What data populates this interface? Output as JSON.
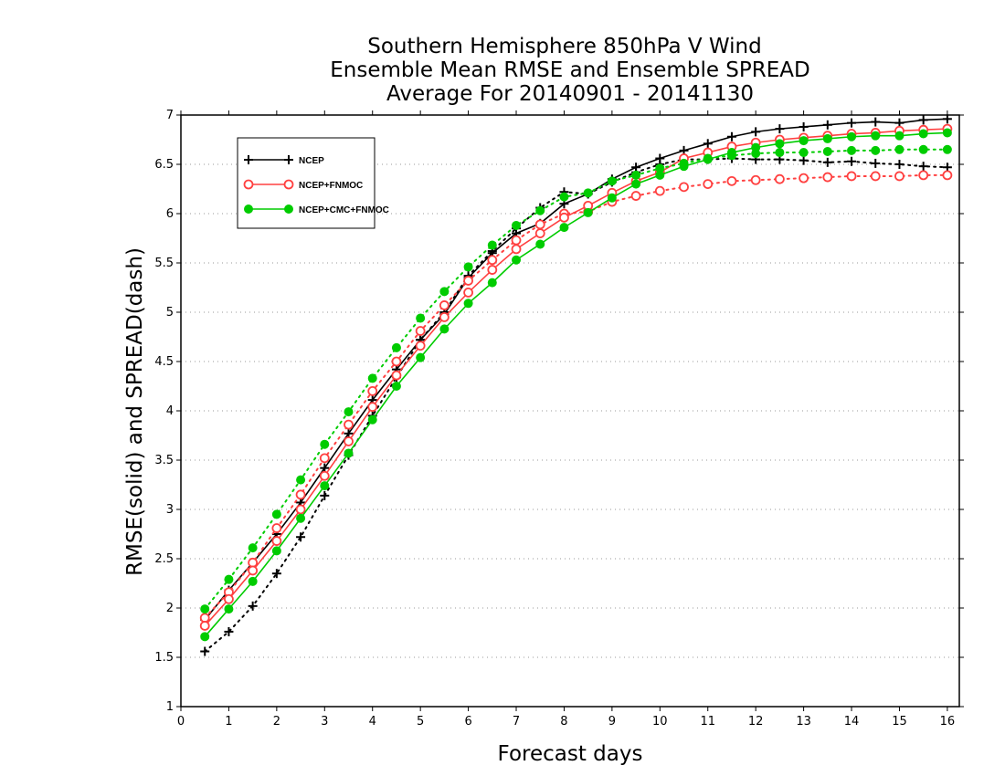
{
  "chart_data": {
    "type": "line",
    "title": [
      "Southern Hemisphere 850hPa V Wind",
      "Ensemble Mean RMSE and Ensemble SPREAD",
      "Average For 20140901 - 20141130"
    ],
    "xlabel": "Forecast days",
    "ylabel": "RMSE(solid) and SPREAD(dash)",
    "xlim": [
      0,
      16.25
    ],
    "ylim": [
      1,
      7
    ],
    "x_ticks": [
      0,
      1,
      2,
      3,
      4,
      5,
      6,
      7,
      8,
      9,
      10,
      11,
      12,
      13,
      14,
      15,
      16
    ],
    "y_ticks": [
      1,
      1.5,
      2,
      2.5,
      3,
      3.5,
      4,
      4.5,
      5,
      5.5,
      6,
      6.5,
      7
    ],
    "grid": "horizontal dotted",
    "legend_position": "top-left",
    "x": [
      0.5,
      1,
      1.5,
      2,
      2.5,
      3,
      3.5,
      4,
      4.5,
      5,
      5.5,
      6,
      6.5,
      7,
      7.5,
      8,
      8.5,
      9,
      9.5,
      10,
      10.5,
      11,
      11.5,
      12,
      12.5,
      13,
      13.5,
      14,
      14.5,
      15,
      15.5,
      16
    ],
    "series": [
      {
        "name": "NCEP",
        "color": "#000000",
        "marker": "plus",
        "rmse": [
          1.88,
          2.18,
          2.46,
          2.75,
          3.07,
          3.42,
          3.77,
          4.11,
          4.42,
          4.72,
          4.98,
          5.35,
          5.6,
          5.8,
          5.9,
          6.1,
          6.2,
          6.35,
          6.47,
          6.56,
          6.64,
          6.71,
          6.78,
          6.83,
          6.86,
          6.88,
          6.9,
          6.92,
          6.93,
          6.92,
          6.95,
          6.96
        ],
        "spread": [
          1.56,
          1.76,
          2.02,
          2.35,
          2.72,
          3.14,
          3.55,
          3.95,
          4.34,
          4.72,
          5.0,
          5.37,
          5.62,
          5.85,
          6.06,
          6.22,
          6.2,
          6.32,
          6.42,
          6.5,
          6.55,
          6.55,
          6.56,
          6.55,
          6.55,
          6.54,
          6.52,
          6.53,
          6.51,
          6.5,
          6.48,
          6.47
        ]
      },
      {
        "name": "NCEP+FNMOC",
        "color": "#ff4040",
        "marker": "open-circle",
        "rmse": [
          1.82,
          2.09,
          2.38,
          2.68,
          3.0,
          3.34,
          3.69,
          4.04,
          4.36,
          4.66,
          4.95,
          5.2,
          5.43,
          5.64,
          5.8,
          5.96,
          6.08,
          6.21,
          6.33,
          6.42,
          6.56,
          6.62,
          6.68,
          6.72,
          6.75,
          6.77,
          6.79,
          6.81,
          6.82,
          6.84,
          6.85,
          6.86
        ],
        "spread": [
          1.9,
          2.16,
          2.46,
          2.81,
          3.15,
          3.52,
          3.86,
          4.2,
          4.5,
          4.81,
          5.07,
          5.32,
          5.53,
          5.73,
          5.89,
          6.0,
          6.02,
          6.12,
          6.18,
          6.23,
          6.27,
          6.3,
          6.33,
          6.34,
          6.35,
          6.36,
          6.37,
          6.38,
          6.38,
          6.38,
          6.39,
          6.39
        ]
      },
      {
        "name": "NCEP+CMC+FNMOC",
        "color": "#00cc00",
        "marker": "filled-circle",
        "rmse": [
          1.71,
          1.99,
          2.27,
          2.58,
          2.91,
          3.24,
          3.57,
          3.91,
          4.25,
          4.54,
          4.83,
          5.09,
          5.3,
          5.53,
          5.69,
          5.86,
          6.01,
          6.16,
          6.3,
          6.39,
          6.48,
          6.55,
          6.62,
          6.67,
          6.71,
          6.74,
          6.76,
          6.78,
          6.79,
          6.79,
          6.81,
          6.82
        ],
        "spread": [
          1.99,
          2.29,
          2.61,
          2.95,
          3.3,
          3.66,
          3.99,
          4.33,
          4.64,
          4.94,
          5.21,
          5.46,
          5.68,
          5.88,
          6.03,
          6.17,
          6.21,
          6.33,
          6.39,
          6.46,
          6.51,
          6.56,
          6.59,
          6.61,
          6.62,
          6.62,
          6.63,
          6.64,
          6.64,
          6.65,
          6.65,
          6.65
        ]
      }
    ]
  }
}
